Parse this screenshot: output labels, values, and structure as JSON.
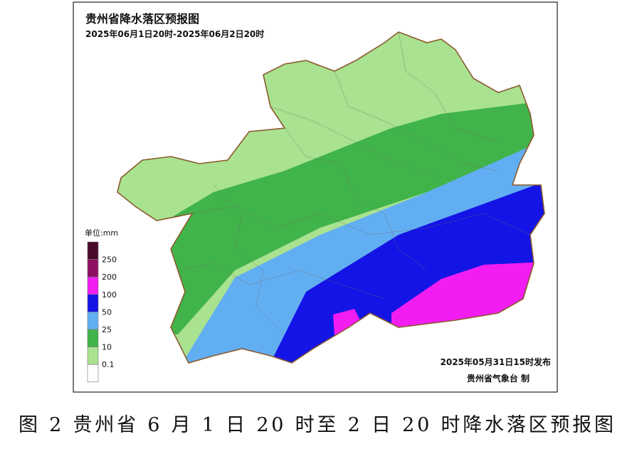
{
  "header": {
    "title": "贵州省降水落区预报图",
    "period": "2025年06月1日20时-2025年06月2日20时"
  },
  "legend": {
    "unit": "单位:mm",
    "labels": [
      "250",
      "200",
      "100",
      "50",
      "25",
      "10",
      "0.1"
    ],
    "colors": [
      "#4a0a2c",
      "#8e0f63",
      "#f21df2",
      "#1414e6",
      "#62aef2",
      "#40b44a",
      "#a9e290",
      "#ffffff"
    ]
  },
  "footer": {
    "issued": "2025年05月31日15时发布",
    "producer": "贵州省气象台 制"
  },
  "caption": "图 2 贵州省 6 月 1 日 20 时至 2 日 20 时降水落区预报图"
}
